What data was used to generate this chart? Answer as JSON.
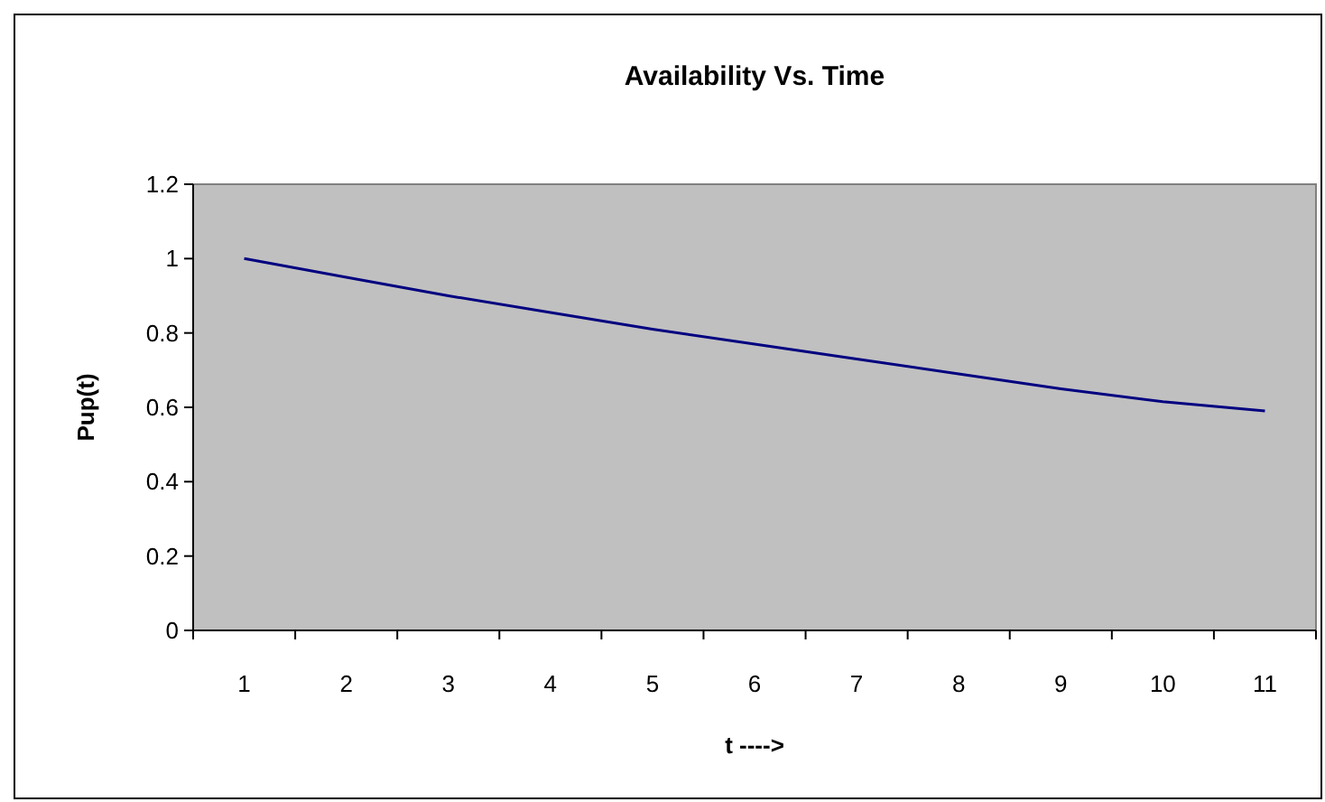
{
  "chart_data": {
    "type": "line",
    "title": "Availability Vs. Time",
    "xlabel": "t ---->",
    "ylabel": "Pup(t)",
    "categories": [
      "1",
      "2",
      "3",
      "4",
      "5",
      "6",
      "7",
      "8",
      "9",
      "10",
      "11"
    ],
    "series": [
      {
        "color": "#000080",
        "values": [
          1,
          0.95,
          0.9,
          0.855,
          0.81,
          0.77,
          0.73,
          0.69,
          0.65,
          0.615,
          0.59
        ]
      }
    ],
    "ylim": [
      0,
      1.2
    ],
    "yticks": [
      0,
      0.2,
      0.4,
      0.6,
      0.8,
      1,
      1.2
    ],
    "grid": false,
    "marker": "none"
  }
}
